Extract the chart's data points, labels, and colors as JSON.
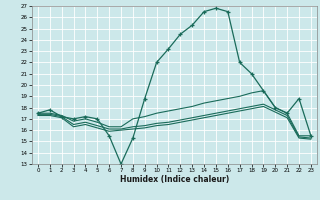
{
  "title": "",
  "xlabel": "Humidex (Indice chaleur)",
  "bg_color": "#cce8ea",
  "line_color": "#1a6b5a",
  "xlim": [
    -0.5,
    23.5
  ],
  "ylim": [
    13,
    27
  ],
  "xticks": [
    0,
    1,
    2,
    3,
    4,
    5,
    6,
    7,
    8,
    9,
    10,
    11,
    12,
    13,
    14,
    15,
    16,
    17,
    18,
    19,
    20,
    21,
    22,
    23
  ],
  "yticks": [
    13,
    14,
    15,
    16,
    17,
    18,
    19,
    20,
    21,
    22,
    23,
    24,
    25,
    26,
    27
  ],
  "line1_x": [
    0,
    1,
    2,
    3,
    4,
    5,
    6,
    7,
    8,
    9,
    10,
    11,
    12,
    13,
    14,
    15,
    16,
    17,
    18,
    19,
    20,
    21,
    22,
    23
  ],
  "line1_y": [
    17.5,
    17.8,
    17.2,
    17.0,
    17.2,
    17.0,
    15.5,
    13.0,
    15.3,
    18.8,
    22.0,
    23.2,
    24.5,
    25.3,
    26.5,
    26.8,
    26.5,
    22.0,
    21.0,
    19.5,
    18.0,
    17.5,
    18.8,
    15.5
  ],
  "line2_x": [
    0,
    1,
    2,
    3,
    4,
    5,
    6,
    7,
    8,
    9,
    10,
    11,
    12,
    13,
    14,
    15,
    16,
    17,
    18,
    19,
    20,
    21,
    22,
    23
  ],
  "line2_y": [
    17.5,
    17.5,
    17.3,
    16.8,
    17.0,
    16.7,
    16.3,
    16.3,
    17.0,
    17.2,
    17.5,
    17.7,
    17.9,
    18.1,
    18.4,
    18.6,
    18.8,
    19.0,
    19.3,
    19.5,
    18.0,
    17.5,
    15.5,
    15.5
  ],
  "line3_x": [
    0,
    1,
    2,
    3,
    4,
    5,
    6,
    7,
    8,
    9,
    10,
    11,
    12,
    13,
    14,
    15,
    16,
    17,
    18,
    19,
    20,
    21,
    22,
    23
  ],
  "line3_y": [
    17.4,
    17.4,
    17.2,
    16.5,
    16.7,
    16.4,
    16.1,
    16.1,
    16.3,
    16.4,
    16.6,
    16.7,
    16.9,
    17.1,
    17.3,
    17.5,
    17.7,
    17.9,
    18.1,
    18.3,
    17.8,
    17.3,
    15.4,
    15.3
  ],
  "line4_x": [
    0,
    1,
    2,
    3,
    4,
    5,
    6,
    7,
    8,
    9,
    10,
    11,
    12,
    13,
    14,
    15,
    16,
    17,
    18,
    19,
    20,
    21,
    22,
    23
  ],
  "line4_y": [
    17.3,
    17.3,
    17.1,
    16.3,
    16.5,
    16.2,
    15.9,
    16.0,
    16.1,
    16.2,
    16.4,
    16.5,
    16.7,
    16.9,
    17.1,
    17.3,
    17.5,
    17.7,
    17.9,
    18.1,
    17.6,
    17.1,
    15.3,
    15.2
  ]
}
